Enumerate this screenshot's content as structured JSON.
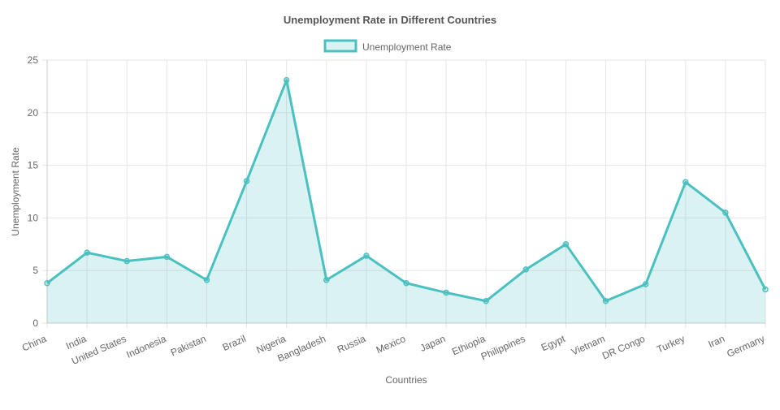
{
  "chart_data": {
    "type": "area",
    "title": "Unemployment Rate in Different Countries",
    "xlabel": "Countries",
    "ylabel": "Unemployment Rate",
    "categories": [
      "China",
      "India",
      "United States",
      "Indonesia",
      "Pakistan",
      "Brazil",
      "Nigeria",
      "Bangladesh",
      "Russia",
      "Mexico",
      "Japan",
      "Ethiopia",
      "Philippines",
      "Egypt",
      "Vietnam",
      "DR Congo",
      "Turkey",
      "Iran",
      "Germany"
    ],
    "series": [
      {
        "name": "Unemployment Rate",
        "values": [
          3.8,
          6.7,
          5.9,
          6.3,
          4.1,
          13.5,
          23.1,
          4.1,
          6.4,
          3.8,
          2.9,
          2.1,
          5.1,
          7.5,
          2.1,
          3.7,
          13.4,
          10.5,
          3.2
        ],
        "color": "#4bc0c0"
      }
    ],
    "ylim": [
      0,
      25
    ],
    "yticks": [
      "0",
      "5",
      "10",
      "15",
      "20",
      "25"
    ],
    "grid": true,
    "legend_position": "top-center"
  }
}
